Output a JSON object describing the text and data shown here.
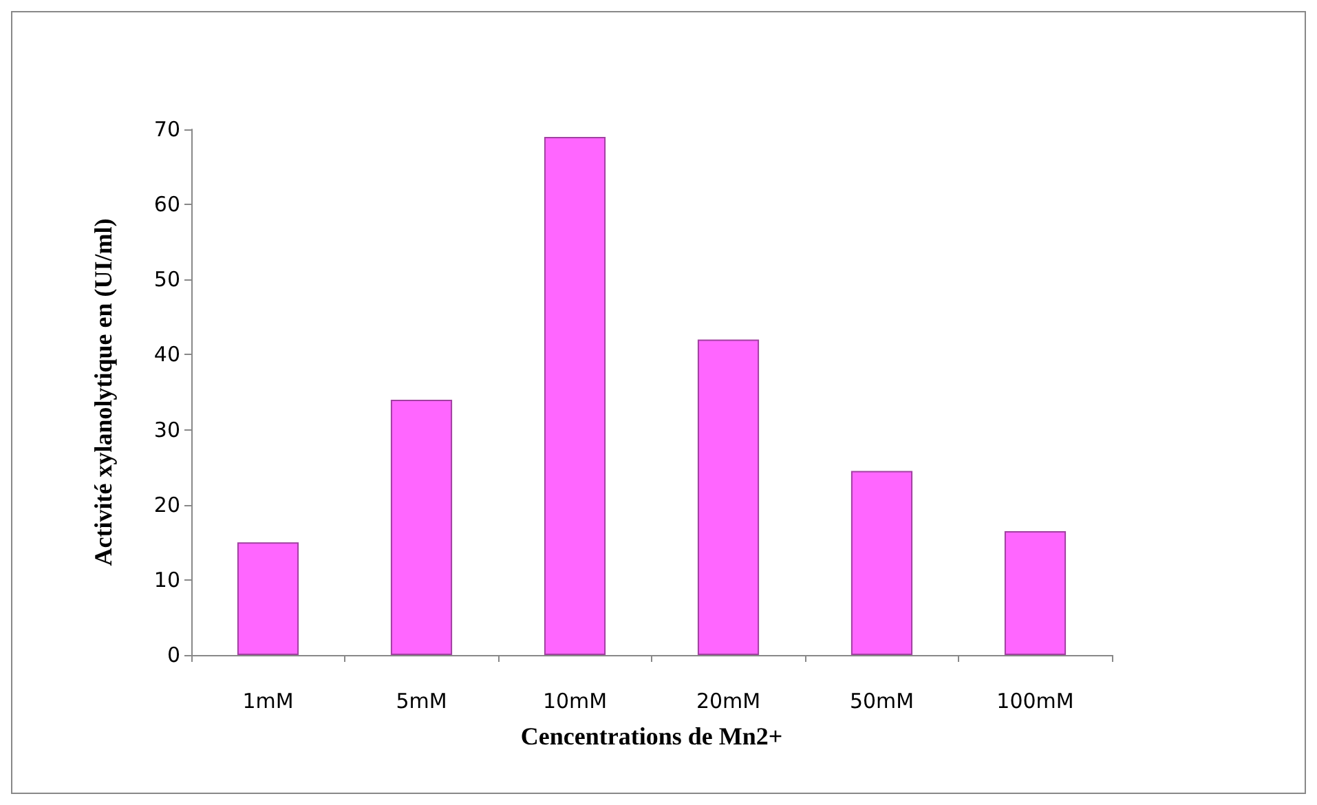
{
  "chart_data": {
    "type": "bar",
    "xlabel": "Cencentrations de Mn2+",
    "ylabel": "Activité xylanolytique en (UI/ml)",
    "categories": [
      "1mM",
      "5mM",
      "10mM",
      "20mM",
      "50mM",
      "100mM"
    ],
    "values": [
      15,
      34,
      69,
      42,
      24.5,
      16.5
    ],
    "color": "#ff66ff",
    "ylim": [
      0,
      70
    ],
    "yticks": [
      0,
      10,
      20,
      30,
      40,
      50,
      60,
      70
    ],
    "grid": false
  }
}
